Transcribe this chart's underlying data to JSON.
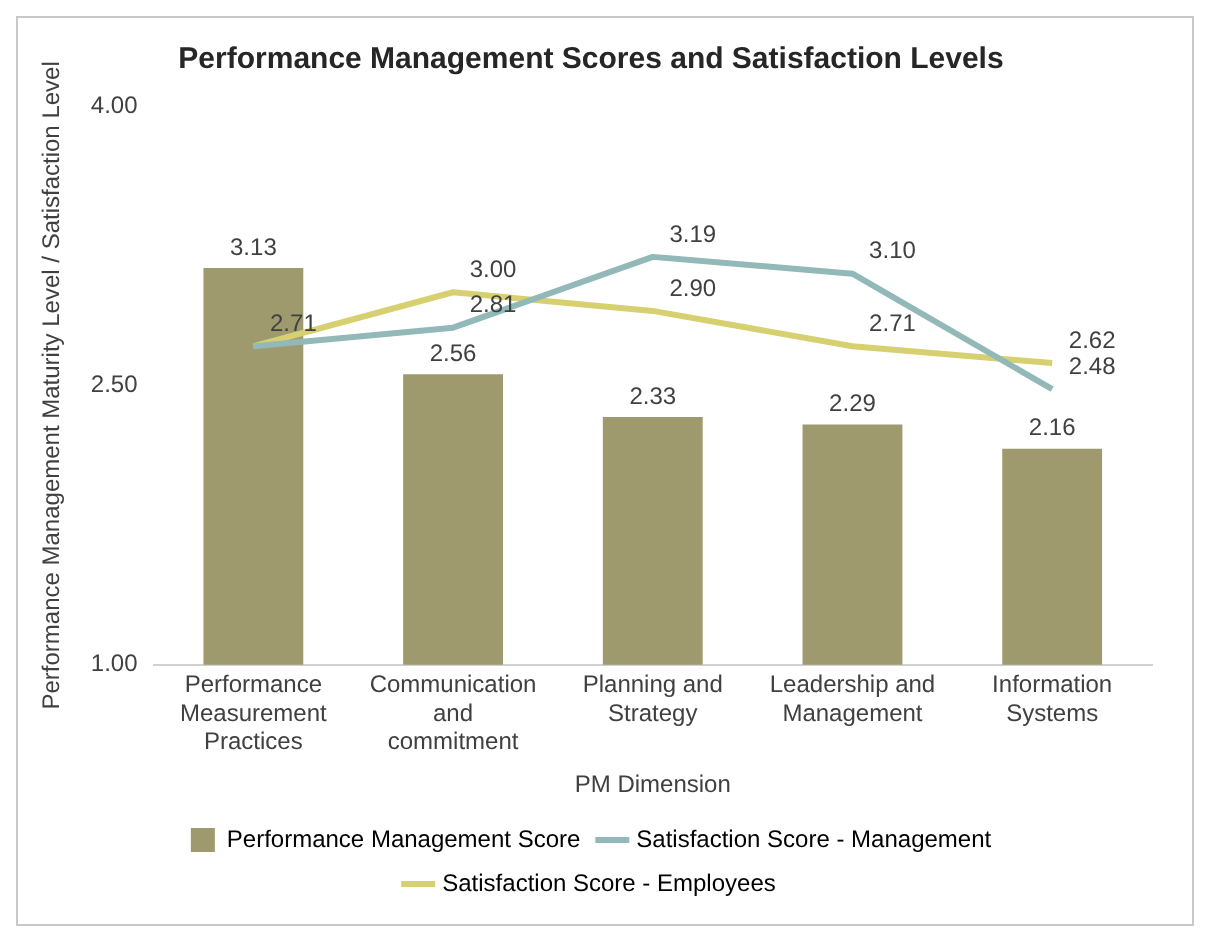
{
  "chart_data": {
    "type": "bar",
    "title": "Performance Management Scores and Satisfaction Levels",
    "xlabel": "PM Dimension",
    "ylabel": "Performance Management Maturity Level / Satisfaction Level",
    "categories": [
      "Performance\nMeasurement\nPractices",
      "Communication\nand\ncommitment",
      "Planning and\nStrategy",
      "Leadership and\nManagement",
      "Information\nSystems"
    ],
    "series": [
      {
        "name": "Performance Management Score",
        "color": "#9e9a6e",
        "values": [
          3.13,
          2.56,
          2.33,
          2.29,
          2.16
        ],
        "value_labels": [
          "3.13",
          "2.56",
          "2.33",
          "2.29",
          "2.16"
        ]
      },
      {
        "name": "Satisfaction Score - Management",
        "type": "line",
        "color": "#92b8b8",
        "values": [
          2.71,
          2.81,
          3.19,
          3.1,
          2.48
        ],
        "value_labels": [
          "2.71",
          "2.81",
          "3.19",
          "3.10",
          "2.48"
        ]
      },
      {
        "name": "Satisfaction Score - Employees",
        "type": "line",
        "color": "#d6d070",
        "values": [
          2.71,
          3.0,
          2.9,
          2.71,
          2.62
        ],
        "value_labels": [
          null,
          "3.00",
          "2.90",
          "2.71",
          "2.62"
        ]
      }
    ],
    "ylim": [
      1,
      4
    ],
    "yticks": [
      {
        "value": 1,
        "label": "1.00"
      },
      {
        "value": 2.5,
        "label": "2.50"
      },
      {
        "value": 4,
        "label": "4.00"
      }
    ],
    "grid": false,
    "legend": "bottom",
    "marker": "none"
  }
}
